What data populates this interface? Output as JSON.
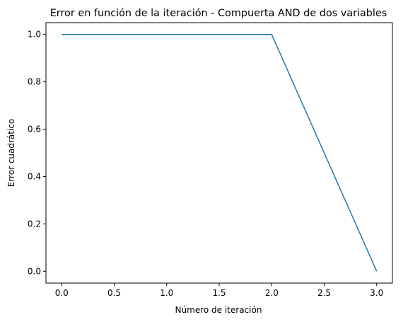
{
  "chart_data": {
    "type": "line",
    "title": "Error en función de la iteración - Compuerta AND de dos variables",
    "xlabel": "Número de iteración",
    "ylabel": "Error cuadrático",
    "x": [
      0,
      1,
      2,
      3
    ],
    "series": [
      {
        "values": [
          1.0,
          1.0,
          1.0,
          0.0
        ],
        "color": "#1f77b4"
      }
    ],
    "xlim": [
      -0.15,
      3.15
    ],
    "ylim": [
      -0.05,
      1.05
    ],
    "xticks": [
      0.0,
      0.5,
      1.0,
      1.5,
      2.0,
      2.5,
      3.0
    ],
    "xtick_labels": [
      "0.0",
      "0.5",
      "1.0",
      "1.5",
      "2.0",
      "2.5",
      "3.0"
    ],
    "yticks": [
      0.0,
      0.2,
      0.4,
      0.6,
      0.8,
      1.0
    ],
    "ytick_labels": [
      "0.0",
      "0.2",
      "0.4",
      "0.6",
      "0.8",
      "1.0"
    ],
    "grid": false,
    "legend": "none"
  }
}
